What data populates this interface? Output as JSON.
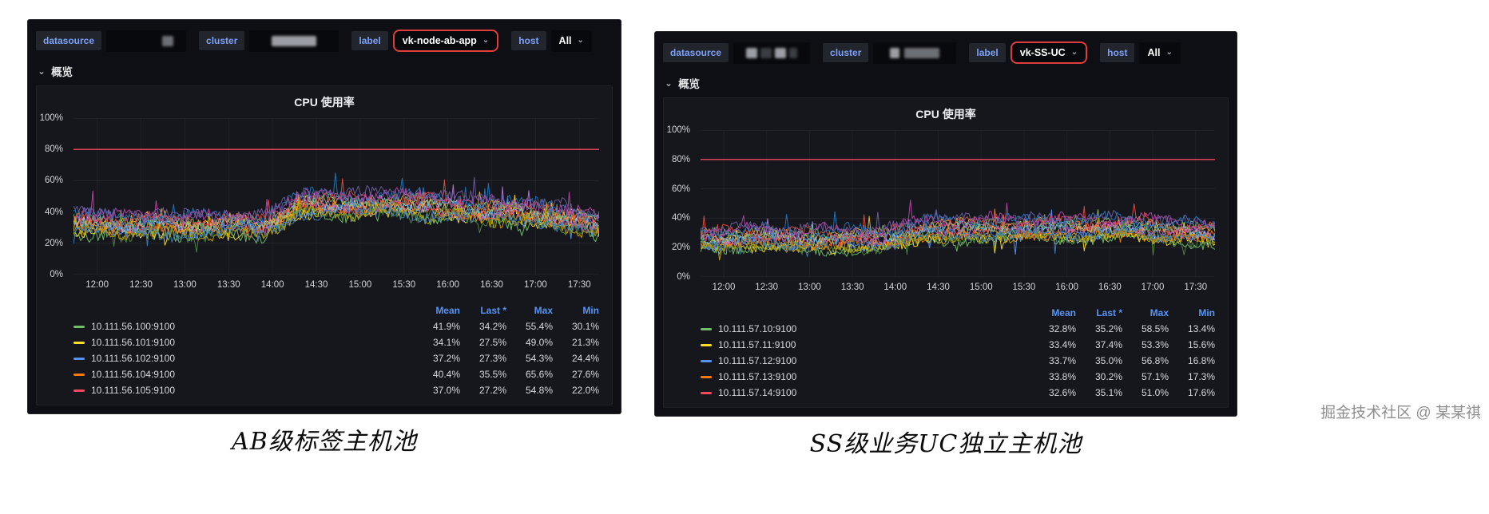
{
  "watermark": "掘金技术社区 @ 某某祺",
  "panels": [
    {
      "caption": "AB级标签主机池",
      "toolbar": {
        "datasource": "datasource",
        "cluster": "cluster",
        "label": "label",
        "label_value": "vk-node-ab-app",
        "host": "host",
        "host_value": "All",
        "caret": "⌄"
      },
      "section": "概览",
      "chart": {
        "title": "CPU 使用率"
      },
      "legend": {
        "headers": [
          "Mean",
          "Last *",
          "Max",
          "Min"
        ],
        "rows": [
          {
            "name": "10.111.56.100:9100",
            "color": "#73BF69",
            "values": [
              "41.9%",
              "34.2%",
              "55.4%",
              "30.1%"
            ]
          },
          {
            "name": "10.111.56.101:9100",
            "color": "#FADE2A",
            "values": [
              "34.1%",
              "27.5%",
              "49.0%",
              "21.3%"
            ]
          },
          {
            "name": "10.111.56.102:9100",
            "color": "#5794F2",
            "values": [
              "37.2%",
              "27.3%",
              "54.3%",
              "24.4%"
            ]
          },
          {
            "name": "10.111.56.104:9100",
            "color": "#FF780A",
            "values": [
              "40.4%",
              "35.5%",
              "65.6%",
              "27.6%"
            ]
          },
          {
            "name": "10.111.56.105:9100",
            "color": "#F2495C",
            "values": [
              "37.0%",
              "27.2%",
              "54.8%",
              "22.0%"
            ]
          }
        ]
      }
    },
    {
      "caption": "SS级业务UC独立主机池",
      "toolbar": {
        "datasource": "datasource",
        "cluster": "cluster",
        "label": "label",
        "label_value": "vk-SS-UC",
        "host": "host",
        "host_value": "All",
        "caret": "⌄"
      },
      "section": "概览",
      "chart": {
        "title": "CPU 使用率"
      },
      "legend": {
        "headers": [
          "Mean",
          "Last *",
          "Max",
          "Min"
        ],
        "rows": [
          {
            "name": "10.111.57.10:9100",
            "color": "#73BF69",
            "values": [
              "32.8%",
              "35.2%",
              "58.5%",
              "13.4%"
            ]
          },
          {
            "name": "10.111.57.11:9100",
            "color": "#FADE2A",
            "values": [
              "33.4%",
              "37.4%",
              "53.3%",
              "15.6%"
            ]
          },
          {
            "name": "10.111.57.12:9100",
            "color": "#5794F2",
            "values": [
              "33.7%",
              "35.0%",
              "56.8%",
              "16.8%"
            ]
          },
          {
            "name": "10.111.57.13:9100",
            "color": "#FF780A",
            "values": [
              "33.8%",
              "30.2%",
              "57.1%",
              "17.3%"
            ]
          },
          {
            "name": "10.111.57.14:9100",
            "color": "#F2495C",
            "values": [
              "32.6%",
              "35.1%",
              "51.0%",
              "17.6%"
            ]
          }
        ]
      }
    }
  ],
  "chart_data": [
    {
      "type": "line",
      "title": "CPU 使用率",
      "x_ticks": [
        "12:00",
        "12:30",
        "13:00",
        "13:30",
        "14:00",
        "14:30",
        "15:00",
        "15:30",
        "16:00",
        "16:30",
        "17:00",
        "17:30"
      ],
      "y_ticks": [
        "0%",
        "20%",
        "40%",
        "60%",
        "80%",
        "100%"
      ],
      "ylim": [
        0,
        100
      ],
      "grid": true,
      "legend_position": "bottom",
      "threshold": 80,
      "threshold_color": "#F2495C",
      "series_stats": [
        {
          "name": "10.111.56.100:9100",
          "mean": 41.9,
          "last": 34.2,
          "max": 55.4,
          "min": 30.1
        },
        {
          "name": "10.111.56.101:9100",
          "mean": 34.1,
          "last": 27.5,
          "max": 49.0,
          "min": 21.3
        },
        {
          "name": "10.111.56.102:9100",
          "mean": 37.2,
          "last": 27.3,
          "max": 54.3,
          "min": 24.4
        },
        {
          "name": "10.111.56.104:9100",
          "mean": 40.4,
          "last": 35.5,
          "max": 65.6,
          "min": 27.6
        },
        {
          "name": "10.111.56.105:9100",
          "mean": 37.0,
          "last": 27.2,
          "max": 54.8,
          "min": 22.0
        }
      ],
      "render": {
        "seed": 11,
        "lines": 16,
        "jitter": 3.6,
        "clamp": [
          4,
          70
        ],
        "profile": [
          [
            0,
            33
          ],
          [
            0.36,
            32
          ],
          [
            0.43,
            45
          ],
          [
            0.62,
            46
          ],
          [
            0.78,
            42
          ],
          [
            0.93,
            38
          ],
          [
            1,
            32
          ]
        ]
      }
    },
    {
      "type": "line",
      "title": "CPU 使用率",
      "x_ticks": [
        "12:00",
        "12:30",
        "13:00",
        "13:30",
        "14:00",
        "14:30",
        "15:00",
        "15:30",
        "16:00",
        "16:30",
        "17:00",
        "17:30"
      ],
      "y_ticks": [
        "0%",
        "20%",
        "40%",
        "60%",
        "80%",
        "100%"
      ],
      "ylim": [
        0,
        100
      ],
      "grid": true,
      "legend_position": "bottom",
      "threshold": 80,
      "threshold_color": "#F2495C",
      "series_stats": [
        {
          "name": "10.111.57.10:9100",
          "mean": 32.8,
          "last": 35.2,
          "max": 58.5,
          "min": 13.4
        },
        {
          "name": "10.111.57.11:9100",
          "mean": 33.4,
          "last": 37.4,
          "max": 53.3,
          "min": 15.6
        },
        {
          "name": "10.111.57.12:9100",
          "mean": 33.7,
          "last": 35.0,
          "max": 56.8,
          "min": 16.8
        },
        {
          "name": "10.111.57.13:9100",
          "mean": 33.8,
          "last": 30.2,
          "max": 57.1,
          "min": 17.3
        },
        {
          "name": "10.111.57.14:9100",
          "mean": 32.6,
          "last": 35.1,
          "max": 51.0,
          "min": 17.6
        }
      ],
      "render": {
        "seed": 23,
        "lines": 16,
        "jitter": 3.2,
        "clamp": [
          6,
          58
        ],
        "profile": [
          [
            0,
            27
          ],
          [
            0.36,
            26
          ],
          [
            0.44,
            33
          ],
          [
            0.82,
            34
          ],
          [
            1,
            30
          ]
        ]
      }
    }
  ]
}
